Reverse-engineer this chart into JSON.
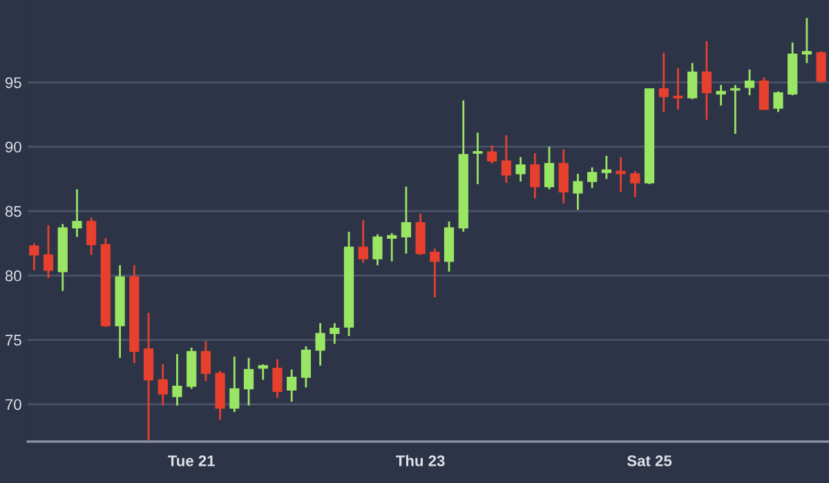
{
  "chart_data": {
    "type": "candlestick",
    "categories": [
      null,
      null,
      null,
      null,
      null,
      null,
      null,
      null,
      null,
      null,
      null,
      "Tue 21",
      null,
      null,
      null,
      null,
      null,
      null,
      null,
      null,
      null,
      null,
      null,
      null,
      null,
      null,
      null,
      "Thu 23",
      null,
      null,
      null,
      null,
      null,
      null,
      null,
      null,
      null,
      null,
      null,
      null,
      null,
      null,
      null,
      "Sat 25",
      null,
      null,
      null,
      null,
      null,
      null,
      null,
      null,
      null,
      null,
      null,
      null
    ],
    "ohlc": [
      [
        82.3,
        82.5,
        80.4,
        81.6
      ],
      [
        81.6,
        83.9,
        79.8,
        80.4
      ],
      [
        80.3,
        84.0,
        78.8,
        83.7
      ],
      [
        83.7,
        86.7,
        83.0,
        84.2
      ],
      [
        84.2,
        84.5,
        81.6,
        82.4
      ],
      [
        82.4,
        82.9,
        76.0,
        76.1
      ],
      [
        76.1,
        80.8,
        73.6,
        79.9
      ],
      [
        79.9,
        80.8,
        73.2,
        74.1
      ],
      [
        74.3,
        77.1,
        67.2,
        71.9
      ],
      [
        71.9,
        73.1,
        69.9,
        70.8
      ],
      [
        70.6,
        73.9,
        69.9,
        71.4
      ],
      [
        71.4,
        74.4,
        71.2,
        74.1
      ],
      [
        74.1,
        74.9,
        71.8,
        72.4
      ],
      [
        72.4,
        72.6,
        68.8,
        69.7
      ],
      [
        69.7,
        73.7,
        69.4,
        71.2
      ],
      [
        71.2,
        73.6,
        69.9,
        72.7
      ],
      [
        72.8,
        73.1,
        71.9,
        73.0
      ],
      [
        72.8,
        73.5,
        70.5,
        71.0
      ],
      [
        71.1,
        72.7,
        70.2,
        72.1
      ],
      [
        72.1,
        74.5,
        71.3,
        74.2
      ],
      [
        74.2,
        76.3,
        73.0,
        75.5
      ],
      [
        75.5,
        76.3,
        74.7,
        75.9
      ],
      [
        76.0,
        83.4,
        75.3,
        82.2
      ],
      [
        82.2,
        84.3,
        81.0,
        81.3
      ],
      [
        81.3,
        83.2,
        80.8,
        83.0
      ],
      [
        82.9,
        83.3,
        81.1,
        83.1
      ],
      [
        83.0,
        86.9,
        81.7,
        84.1
      ],
      [
        84.1,
        84.8,
        81.6,
        81.7
      ],
      [
        81.8,
        82.1,
        78.3,
        81.1
      ],
      [
        81.1,
        84.2,
        80.3,
        83.7
      ],
      [
        83.7,
        93.6,
        83.4,
        89.4
      ],
      [
        89.5,
        91.1,
        87.1,
        89.6
      ],
      [
        89.6,
        90.1,
        88.7,
        88.9
      ],
      [
        88.9,
        90.9,
        87.2,
        87.8
      ],
      [
        87.9,
        89.2,
        87.3,
        88.6
      ],
      [
        88.6,
        89.5,
        86.0,
        86.9
      ],
      [
        86.9,
        90.0,
        86.7,
        88.7
      ],
      [
        88.7,
        89.8,
        85.6,
        86.5
      ],
      [
        86.4,
        87.9,
        85.1,
        87.3
      ],
      [
        87.3,
        88.4,
        86.8,
        88.0
      ],
      [
        88.0,
        89.3,
        87.5,
        88.2
      ],
      [
        88.1,
        89.2,
        86.5,
        87.9
      ],
      [
        87.9,
        88.1,
        86.1,
        87.2
      ],
      [
        87.2,
        94.5,
        87.1,
        94.5
      ],
      [
        94.5,
        97.3,
        92.7,
        93.9
      ],
      [
        93.9,
        96.1,
        92.9,
        93.8
      ],
      [
        93.8,
        96.5,
        93.7,
        95.8
      ],
      [
        95.8,
        98.2,
        92.1,
        94.2
      ],
      [
        94.1,
        94.8,
        93.2,
        94.3
      ],
      [
        94.4,
        94.8,
        91.0,
        94.5
      ],
      [
        94.6,
        96.0,
        94.0,
        95.1
      ],
      [
        95.1,
        95.4,
        92.9,
        92.9
      ],
      [
        93.0,
        94.3,
        92.7,
        94.2
      ],
      [
        94.1,
        98.1,
        94.0,
        97.2
      ],
      [
        97.2,
        100.0,
        96.5,
        97.4
      ],
      [
        97.3,
        97.4,
        95.0,
        95.1
      ]
    ],
    "colors": [
      "#e8402e",
      "#e8402e",
      "#9be564",
      "#9be564",
      "#e8402e",
      "#e8402e",
      "#9be564",
      "#e8402e",
      "#e8402e",
      "#e8402e",
      "#9be564",
      "#9be564",
      "#e8402e",
      "#e8402e",
      "#9be564",
      "#9be564",
      "#9be564",
      "#e8402e",
      "#9be564",
      "#9be564",
      "#9be564",
      "#9be564",
      "#9be564",
      "#e8402e",
      "#9be564",
      "#9be564",
      "#9be564",
      "#e8402e",
      "#e8402e",
      "#9be564",
      "#9be564",
      "#9be564",
      "#e8402e",
      "#e8402e",
      "#9be564",
      "#e8402e",
      "#9be564",
      "#e8402e",
      "#9be564",
      "#9be564",
      "#9be564",
      "#e8402e",
      "#e8402e",
      "#9be564",
      "#e8402e",
      "#e8402e",
      "#9be564",
      "#e8402e",
      "#9be564",
      "#9be564",
      "#9be564",
      "#e8402e",
      "#9be564",
      "#9be564",
      "#9be564",
      "#e8402e"
    ],
    "ylim": [
      67.1,
      101.4
    ],
    "yticks": [
      70,
      75,
      80,
      85,
      90,
      95
    ],
    "grid": "y"
  }
}
